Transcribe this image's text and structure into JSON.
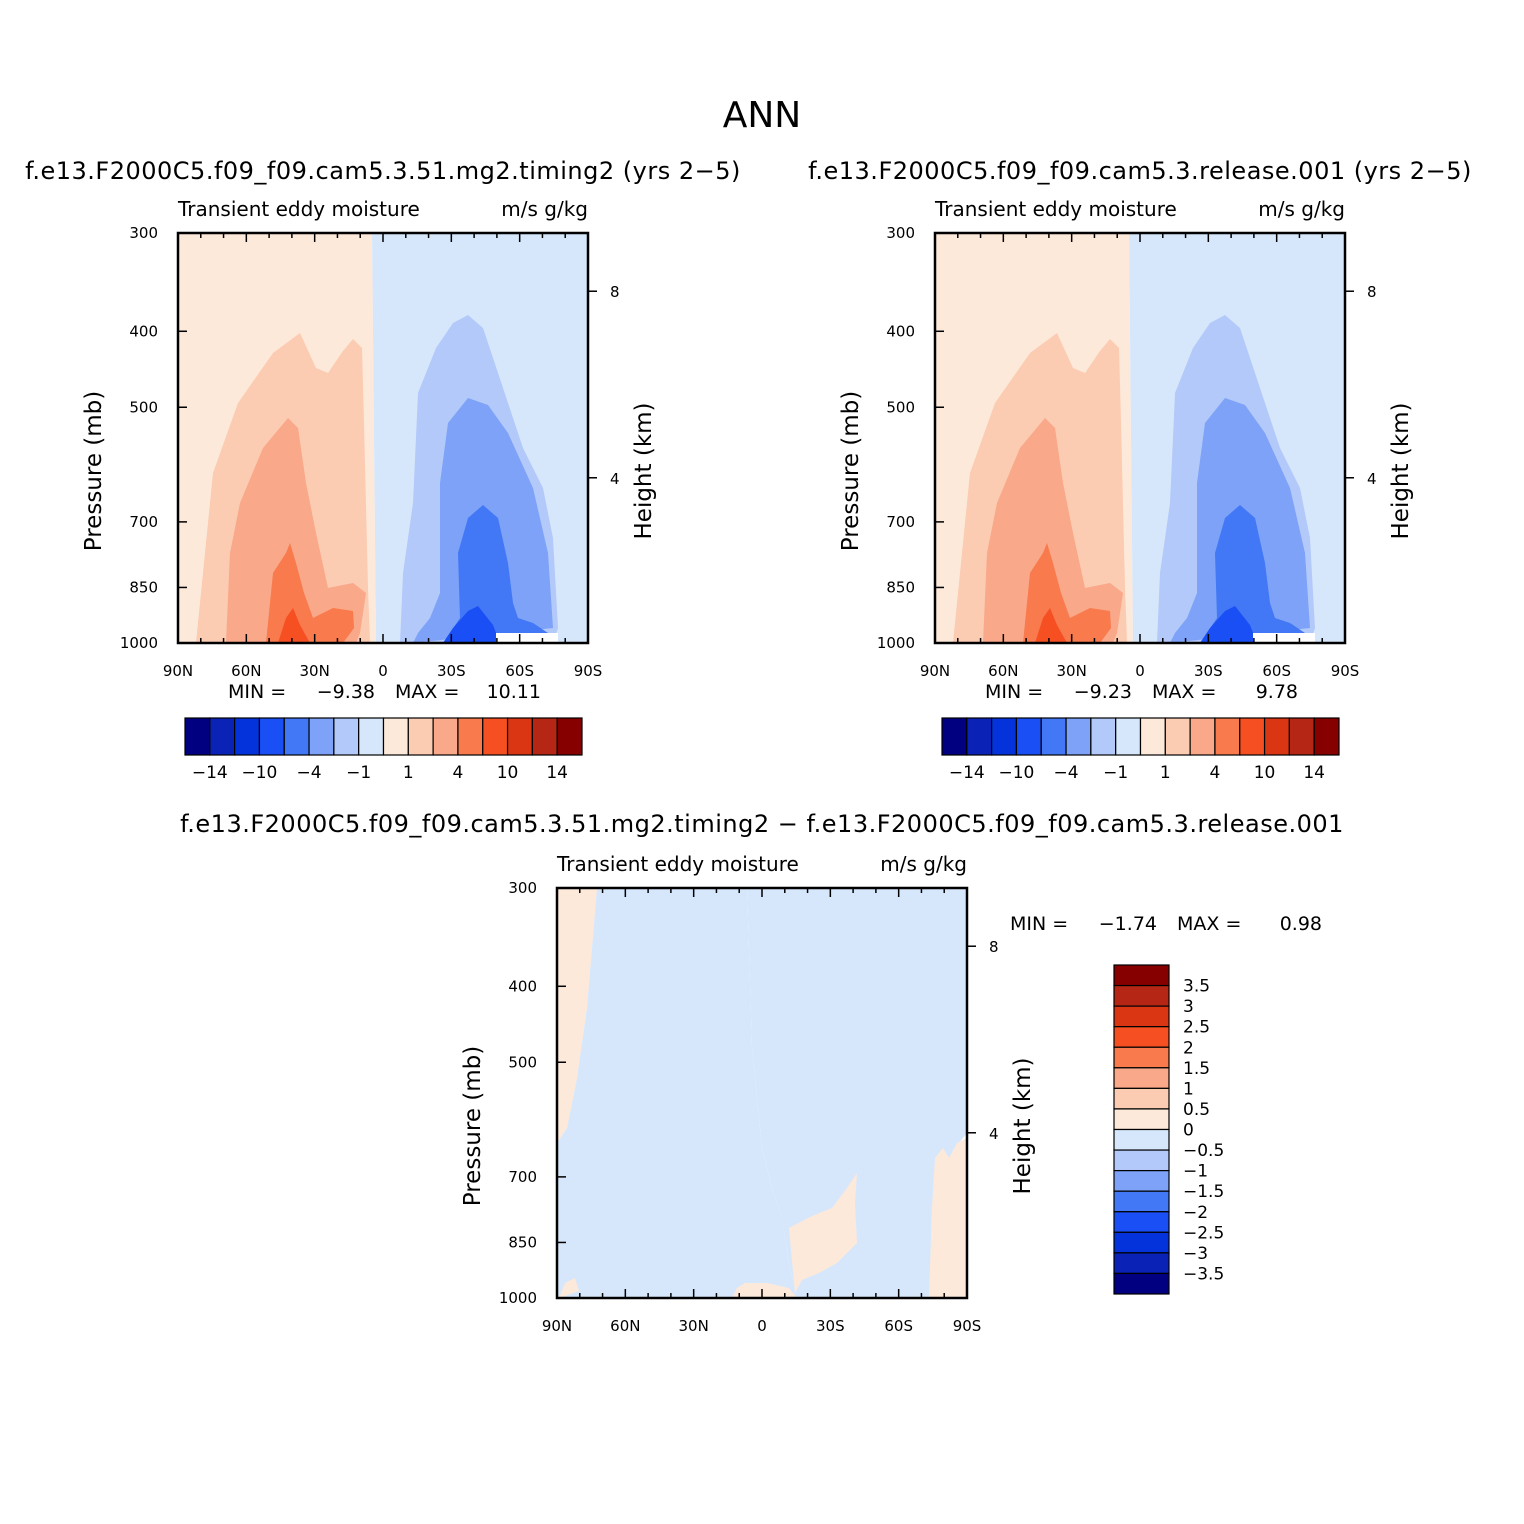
{
  "figure_title": "ANN",
  "colors": {
    "ramp": [
      "#000080",
      "#0a22b5",
      "#0433dc",
      "#1a4ff5",
      "#4278f5",
      "#7da2f7",
      "#b3c9f9",
      "#d6e7fc",
      "#fde9da",
      "#fbcbb2",
      "#f9a889",
      "#f87a4d",
      "#f64f22",
      "#db3613",
      "#b52614",
      "#870000"
    ]
  },
  "chart_data": [
    {
      "type": "contour",
      "title": "f.e13.F2000C5.f09_f09.cam5.3.51.mg2.timing2 (yrs 2−5)",
      "subtitle": "Transient  eddy  moisture",
      "units": "m/s  g/kg",
      "ylabel": "Pressure  (mb)",
      "right_label": "Height  (km)",
      "x_ticks": [
        "90N",
        "60N",
        "30N",
        "0",
        "30S",
        "60S",
        "90S"
      ],
      "y_ticks": [
        "300",
        "400",
        "500",
        "700",
        "850",
        "1000"
      ],
      "right_ticks": [
        "8",
        "4"
      ],
      "min_label": "MIN =",
      "min": "−9.38",
      "max_label": "MAX =",
      "max": "10.11",
      "colorbar_labels": [
        "−14",
        "−10",
        "−4",
        "−1",
        "1",
        "4",
        "10",
        "14"
      ]
    },
    {
      "type": "contour",
      "title": "f.e13.F2000C5.f09_f09.cam5.3.release.001 (yrs 2−5)",
      "subtitle": "Transient  eddy  moisture",
      "units": "m/s  g/kg",
      "ylabel": "Pressure  (mb)",
      "right_label": "Height  (km)",
      "x_ticks": [
        "90N",
        "60N",
        "30N",
        "0",
        "30S",
        "60S",
        "90S"
      ],
      "y_ticks": [
        "300",
        "400",
        "500",
        "700",
        "850",
        "1000"
      ],
      "right_ticks": [
        "8",
        "4"
      ],
      "min_label": "MIN =",
      "min": "−9.23",
      "max_label": "MAX =",
      "max": "9.78",
      "colorbar_labels": [
        "−14",
        "−10",
        "−4",
        "−1",
        "1",
        "4",
        "10",
        "14"
      ]
    },
    {
      "type": "contour",
      "title": "f.e13.F2000C5.f09_f09.cam5.3.51.mg2.timing2 − f.e13.F2000C5.f09_f09.cam5.3.release.001",
      "subtitle": "Transient  eddy  moisture",
      "units": "m/s  g/kg",
      "ylabel": "Pressure  (mb)",
      "right_label": "Height  (km)",
      "x_ticks": [
        "90N",
        "60N",
        "30N",
        "0",
        "30S",
        "60S",
        "90S"
      ],
      "y_ticks": [
        "300",
        "400",
        "500",
        "700",
        "850",
        "1000"
      ],
      "right_ticks": [
        "8",
        "4"
      ],
      "min_label": "MIN =",
      "min": "−1.74",
      "max_label": "MAX =",
      "max": "0.98",
      "colorbar_labels": [
        "3.5",
        "3",
        "2.5",
        "2",
        "1.5",
        "1",
        "0.5",
        "0",
        "−0.5",
        "−1",
        "−1.5",
        "−2",
        "−2.5",
        "−3",
        "−3.5"
      ]
    }
  ]
}
